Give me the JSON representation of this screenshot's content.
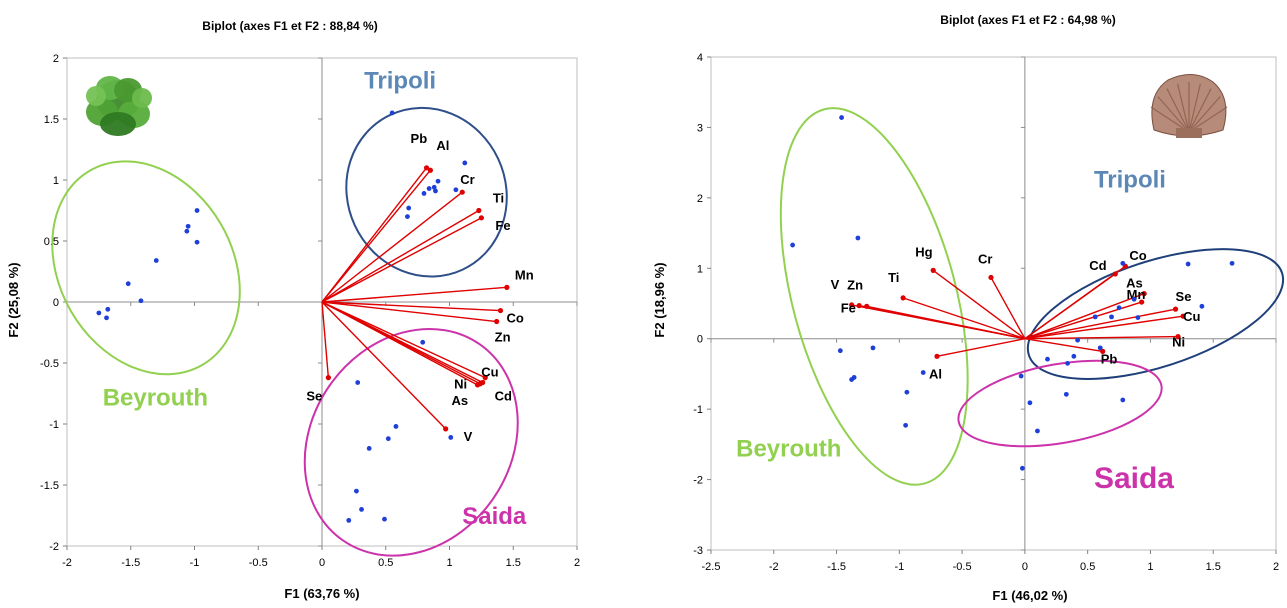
{
  "chart_data": [
    {
      "type": "scatter",
      "title": "Biplot (axes F1 et F2 : 88,84 %)",
      "xlabel": "F1 (63,76 %)",
      "ylabel": "F2 (25,08 %)",
      "xlim": [
        -2,
        2
      ],
      "ylim": [
        -2,
        2
      ],
      "xticks": [
        -2,
        -1.5,
        -1,
        -0.5,
        0,
        0.5,
        1,
        1.5,
        2
      ],
      "yticks": [
        -2,
        -1.5,
        -1,
        -0.5,
        0,
        0.5,
        1,
        1.5,
        2
      ],
      "xtick_labels": [
        "-2",
        "-1.5",
        "-1",
        "-0.5",
        "0",
        "0.5",
        "1",
        "1.5",
        "2"
      ],
      "ytick_labels": [
        "-2",
        "-1.5",
        "-1",
        "-0.5",
        "0",
        "0.5",
        "1",
        "1.5",
        "2"
      ],
      "grid": false,
      "icon": "lettuce-icon",
      "vectors": [
        {
          "label": "Pb",
          "x": 0.82,
          "y": 1.1
        },
        {
          "label": "Al",
          "x": 0.85,
          "y": 1.08
        },
        {
          "label": "Cr",
          "x": 1.1,
          "y": 0.9
        },
        {
          "label": "Ti",
          "x": 1.23,
          "y": 0.75
        },
        {
          "label": "Fe",
          "x": 1.25,
          "y": 0.69
        },
        {
          "label": "Mn",
          "x": 1.45,
          "y": 0.12
        },
        {
          "label": "Co",
          "x": 1.4,
          "y": -0.07
        },
        {
          "label": "Zn",
          "x": 1.37,
          "y": -0.16
        },
        {
          "label": "Cu",
          "x": 1.28,
          "y": -0.62
        },
        {
          "label": "Cd",
          "x": 1.26,
          "y": -0.66
        },
        {
          "label": "Ni",
          "x": 1.24,
          "y": -0.67
        },
        {
          "label": "As",
          "x": 1.22,
          "y": -0.68
        },
        {
          "label": "V",
          "x": 0.97,
          "y": -1.04
        },
        {
          "label": "Se",
          "x": 0.05,
          "y": -0.62
        }
      ],
      "observations": [
        {
          "x": -1.75,
          "y": -0.09
        },
        {
          "x": -1.69,
          "y": -0.13
        },
        {
          "x": -1.68,
          "y": -0.06
        },
        {
          "x": -1.52,
          "y": 0.15
        },
        {
          "x": -1.42,
          "y": 0.01
        },
        {
          "x": -1.3,
          "y": 0.34
        },
        {
          "x": -1.06,
          "y": 0.58
        },
        {
          "x": -1.05,
          "y": 0.62
        },
        {
          "x": -0.98,
          "y": 0.75
        },
        {
          "x": -0.98,
          "y": 0.49
        },
        {
          "x": 0.55,
          "y": 1.55
        },
        {
          "x": 1.12,
          "y": 1.14
        },
        {
          "x": 0.91,
          "y": 0.99
        },
        {
          "x": 0.88,
          "y": 0.94
        },
        {
          "x": 0.84,
          "y": 0.93
        },
        {
          "x": 0.89,
          "y": 0.91
        },
        {
          "x": 0.8,
          "y": 0.89
        },
        {
          "x": 1.05,
          "y": 0.92
        },
        {
          "x": 0.68,
          "y": 0.77
        },
        {
          "x": 0.67,
          "y": 0.7
        },
        {
          "x": 0.79,
          "y": -0.33
        },
        {
          "x": 0.28,
          "y": -0.66
        },
        {
          "x": 0.58,
          "y": -1.02
        },
        {
          "x": 0.52,
          "y": -1.12
        },
        {
          "x": 0.37,
          "y": -1.2
        },
        {
          "x": 1.01,
          "y": -1.11
        },
        {
          "x": 0.27,
          "y": -1.55
        },
        {
          "x": 0.31,
          "y": -1.7
        },
        {
          "x": 0.21,
          "y": -1.79
        },
        {
          "x": 0.49,
          "y": -1.78
        }
      ],
      "groups": [
        {
          "name": "Tripoli",
          "color": "#5B88B6",
          "ellipse_color": "#2F4F8A",
          "ellipse": {
            "cx": 0.82,
            "cy": 0.9,
            "rx": 0.62,
            "ry": 0.7,
            "angle": -25
          },
          "label_pos": {
            "x": 0.33,
            "y": 1.75
          }
        },
        {
          "name": "Beyrouth",
          "color": "#92D050",
          "ellipse_color": "#92D050",
          "ellipse": {
            "cx": -1.38,
            "cy": 0.28,
            "rx": 0.68,
            "ry": 0.92,
            "angle": -30
          },
          "label_pos": {
            "x": -1.72,
            "y": -0.85
          }
        },
        {
          "name": "Saida",
          "color": "#CC33AA",
          "ellipse_color": "#CC33AA",
          "ellipse": {
            "cx": 0.7,
            "cy": -1.15,
            "rx": 0.78,
            "ry": 0.98,
            "angle": 35
          },
          "label_pos": {
            "x": 1.1,
            "y": -1.82
          }
        }
      ]
    },
    {
      "type": "scatter",
      "title": "Biplot (axes F1 et F2 : 64,98 %)",
      "xlabel": "F1 (46,02 %)",
      "ylabel": "F2 (18,96 %)",
      "xlim": [
        -2.5,
        2
      ],
      "ylim": [
        -3,
        4
      ],
      "xticks": [
        -2.5,
        -2,
        -1.5,
        -1,
        -0.5,
        0,
        0.5,
        1,
        1.5,
        2
      ],
      "yticks": [
        -3,
        -2,
        -1,
        0,
        1,
        2,
        3,
        4
      ],
      "xtick_labels": [
        "-2.5",
        "-2",
        "-1.5",
        "-1",
        "-0.5",
        "0",
        "0.5",
        "1",
        "1.5",
        "2"
      ],
      "ytick_labels": [
        "-3",
        "-2",
        "-1",
        "0",
        "1",
        "2",
        "3",
        "4"
      ],
      "grid": false,
      "icon": "shell-icon",
      "vectors": [
        {
          "label": "Hg",
          "x": -0.73,
          "y": 0.97
        },
        {
          "label": "Cr",
          "x": -0.27,
          "y": 0.87
        },
        {
          "label": "Cd",
          "x": 0.72,
          "y": 0.92
        },
        {
          "label": "Co",
          "x": 0.8,
          "y": 1.03
        },
        {
          "label": "As",
          "x": 0.95,
          "y": 0.64
        },
        {
          "label": "Mn",
          "x": 0.93,
          "y": 0.52
        },
        {
          "label": "Se",
          "x": 1.2,
          "y": 0.42
        },
        {
          "label": "Cu",
          "x": 1.26,
          "y": 0.32
        },
        {
          "label": "Ni",
          "x": 1.22,
          "y": 0.03
        },
        {
          "label": "Pb",
          "x": 0.62,
          "y": -0.18
        },
        {
          "label": "V",
          "x": -1.38,
          "y": 0.48
        },
        {
          "label": "Zn",
          "x": -1.32,
          "y": 0.47
        },
        {
          "label": "Ti",
          "x": -0.97,
          "y": 0.58
        },
        {
          "label": "Fe",
          "x": -1.26,
          "y": 0.46
        },
        {
          "label": "Al",
          "x": -0.7,
          "y": -0.25
        }
      ],
      "observations": [
        {
          "x": -1.46,
          "y": 3.14
        },
        {
          "x": -1.85,
          "y": 1.33
        },
        {
          "x": -1.33,
          "y": 1.43
        },
        {
          "x": -1.47,
          "y": -0.17
        },
        {
          "x": -1.21,
          "y": -0.13
        },
        {
          "x": -1.38,
          "y": -0.58
        },
        {
          "x": -1.36,
          "y": -0.55
        },
        {
          "x": -0.81,
          "y": -0.48
        },
        {
          "x": -0.94,
          "y": -0.76
        },
        {
          "x": -0.95,
          "y": -1.23
        },
        {
          "x": 0.78,
          "y": 1.07
        },
        {
          "x": 1.3,
          "y": 1.06
        },
        {
          "x": 1.65,
          "y": 1.07
        },
        {
          "x": 0.75,
          "y": 0.44
        },
        {
          "x": 1.41,
          "y": 0.46
        },
        {
          "x": 0.56,
          "y": 0.31
        },
        {
          "x": 0.69,
          "y": 0.31
        },
        {
          "x": 0.87,
          "y": 0.56
        },
        {
          "x": 0.9,
          "y": 0.3
        },
        {
          "x": 0.42,
          "y": -0.02
        },
        {
          "x": 0.18,
          "y": -0.29
        },
        {
          "x": 0.39,
          "y": -0.25
        },
        {
          "x": 0.34,
          "y": -0.35
        },
        {
          "x": 0.33,
          "y": -0.79
        },
        {
          "x": -0.03,
          "y": -0.53
        },
        {
          "x": 0.04,
          "y": -0.91
        },
        {
          "x": 0.1,
          "y": -1.31
        },
        {
          "x": 0.78,
          "y": -0.87
        },
        {
          "x": -0.02,
          "y": -1.84
        },
        {
          "x": 0.6,
          "y": -0.13
        }
      ],
      "groups": [
        {
          "name": "Tripoli",
          "color": "#5B88B6",
          "ellipse_color": "#1F3F7A",
          "ellipse": {
            "cx": 1.04,
            "cy": 0.35,
            "rx": 1.06,
            "ry": 0.75,
            "angle": -18
          },
          "label_pos": {
            "x": 0.55,
            "y": 2.15
          }
        },
        {
          "name": "Beyrouth",
          "color": "#92D050",
          "ellipse_color": "#92D050",
          "ellipse": {
            "cx": -1.2,
            "cy": 0.6,
            "rx": 0.65,
            "ry": 2.75,
            "angle": -15
          },
          "label_pos": {
            "x": -2.3,
            "y": -1.67
          }
        },
        {
          "name": "Saida",
          "color": "#CC33AA",
          "ellipse_color": "#CC33AA",
          "ellipse": {
            "cx": 0.28,
            "cy": -0.92,
            "rx": 0.82,
            "ry": 0.56,
            "angle": -10
          },
          "label_pos": {
            "x": 0.55,
            "y": -2.12
          }
        }
      ]
    }
  ]
}
